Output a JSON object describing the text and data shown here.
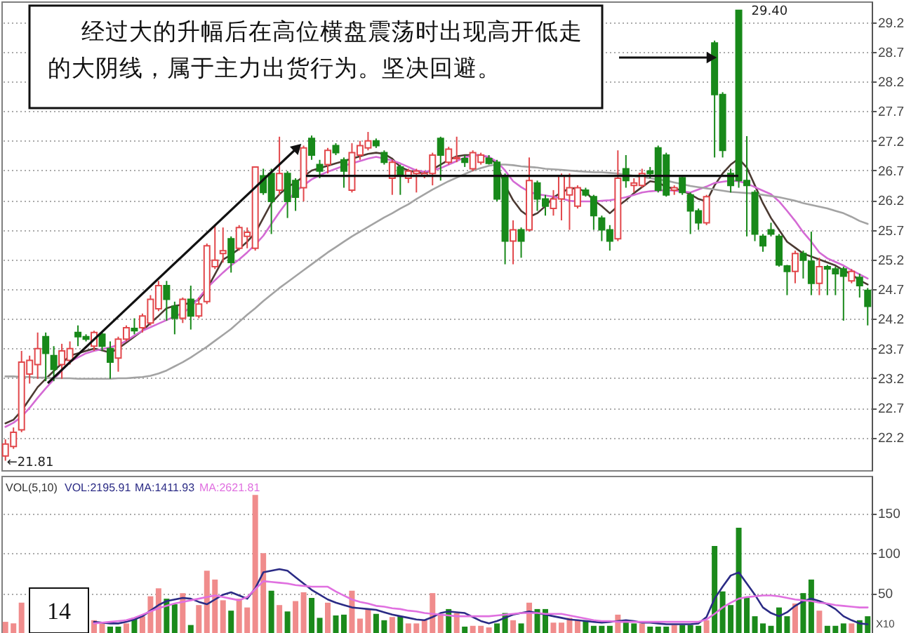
{
  "chart_data": [
    {
      "type": "candlestick",
      "categories": [
        null,
        null,
        null,
        null,
        null,
        null,
        null,
        null,
        null,
        null,
        null,
        null,
        null,
        null,
        null,
        null,
        null,
        null,
        null,
        null,
        null,
        null,
        null,
        null,
        null,
        null,
        null,
        null,
        null,
        null,
        null,
        null,
        null,
        null,
        null,
        null,
        null,
        null,
        null,
        null,
        null,
        null,
        null,
        null,
        null,
        null,
        null,
        null,
        null,
        null,
        null,
        null,
        null,
        null,
        null,
        null,
        null,
        null,
        null,
        null,
        null,
        null,
        null,
        null,
        null,
        null,
        null,
        null,
        null,
        null,
        null,
        null,
        null,
        null,
        null,
        null,
        null,
        null,
        null,
        null,
        null,
        null,
        null,
        null,
        null,
        null,
        null,
        null,
        null,
        null,
        null,
        null,
        null,
        null,
        null,
        null,
        null,
        null,
        null,
        null,
        null,
        null,
        null,
        null,
        null,
        null,
        null,
        null
      ],
      "ohlc": [
        [
          21.89,
          22.17,
          21.81,
          22.09
        ],
        [
          22.05,
          22.37,
          22.01,
          22.29
        ],
        [
          22.33,
          23.66,
          22.29,
          23.47
        ],
        [
          23.27,
          23.58,
          23.11,
          23.5
        ],
        [
          23.43,
          23.97,
          23.19,
          23.7
        ],
        [
          23.9,
          23.97,
          23.15,
          23.62
        ],
        [
          23.58,
          23.74,
          23.15,
          23.35
        ],
        [
          23.43,
          23.78,
          23.19,
          23.66
        ],
        [
          23.5,
          23.82,
          23.43,
          23.7
        ],
        [
          23.97,
          24.09,
          23.74,
          23.9
        ],
        [
          23.9,
          23.94,
          23.82,
          23.86
        ],
        [
          23.74,
          24.0,
          23.66,
          23.97
        ],
        [
          23.94,
          23.97,
          23.66,
          23.74
        ],
        [
          23.7,
          23.82,
          23.19,
          23.47
        ],
        [
          23.54,
          23.9,
          23.31,
          23.86
        ],
        [
          23.86,
          24.09,
          23.82,
          24.05
        ],
        [
          24.04,
          24.21,
          23.94,
          24.0
        ],
        [
          24.05,
          24.29,
          23.97,
          24.25
        ],
        [
          24.13,
          24.6,
          24.09,
          24.53
        ],
        [
          24.37,
          24.84,
          24.33,
          24.76
        ],
        [
          24.76,
          24.84,
          24.17,
          24.53
        ],
        [
          24.41,
          24.49,
          23.94,
          24.21
        ],
        [
          24.21,
          24.56,
          24.13,
          24.53
        ],
        [
          24.53,
          24.76,
          24.02,
          24.25
        ],
        [
          24.25,
          24.56,
          24.21,
          24.45
        ],
        [
          24.49,
          25.47,
          24.45,
          25.43
        ],
        [
          25.08,
          25.78,
          25.04,
          25.19
        ],
        [
          25.3,
          25.74,
          25.15,
          25.35
        ],
        [
          25.55,
          25.59,
          24.98,
          25.15
        ],
        [
          25.39,
          25.78,
          25.35,
          25.74
        ],
        [
          25.59,
          25.74,
          25.39,
          25.66
        ],
        [
          25.39,
          26.76,
          25.35,
          26.76
        ],
        [
          26.61,
          26.73,
          26.29,
          26.33
        ],
        [
          26.65,
          26.73,
          25.63,
          26.18
        ],
        [
          26.37,
          27.27,
          26.29,
          26.65
        ],
        [
          26.65,
          26.69,
          25.9,
          26.18
        ],
        [
          26.53,
          26.57,
          26.02,
          26.25
        ],
        [
          26.41,
          27.12,
          26.18,
          27.08
        ],
        [
          27.24,
          27.29,
          26.88,
          26.96
        ],
        [
          26.8,
          26.88,
          26.57,
          26.69
        ],
        [
          26.8,
          27.08,
          26.65,
          27.04
        ],
        [
          27.12,
          27.16,
          26.96,
          27.0
        ],
        [
          26.88,
          26.92,
          26.41,
          26.69
        ],
        [
          26.37,
          27.16,
          26.33,
          27.0
        ],
        [
          26.96,
          27.2,
          26.88,
          27.12
        ],
        [
          27.08,
          27.35,
          27.04,
          27.2
        ],
        [
          27.2,
          27.24,
          27.08,
          27.12
        ],
        [
          27.0,
          27.04,
          26.8,
          26.84
        ],
        [
          26.57,
          26.88,
          26.29,
          26.84
        ],
        [
          26.76,
          26.8,
          26.29,
          26.61
        ],
        [
          26.57,
          26.73,
          26.49,
          26.69
        ],
        [
          26.65,
          26.73,
          26.33,
          26.69
        ],
        [
          26.61,
          26.69,
          26.57,
          26.65
        ],
        [
          26.65,
          27.0,
          26.45,
          26.96
        ],
        [
          27.24,
          27.27,
          26.53,
          26.96
        ],
        [
          26.84,
          27.1,
          26.8,
          27.06
        ],
        [
          26.9,
          27.27,
          26.84,
          26.92
        ],
        [
          26.9,
          26.96,
          26.76,
          26.84
        ],
        [
          26.73,
          27.04,
          26.69,
          27.0
        ],
        [
          26.84,
          27.0,
          26.8,
          26.96
        ],
        [
          26.9,
          26.96,
          26.8,
          26.82
        ],
        [
          26.84,
          26.88,
          26.18,
          26.22
        ],
        [
          26.61,
          26.65,
          25.12,
          25.51
        ],
        [
          25.51,
          25.86,
          25.12,
          25.7
        ],
        [
          25.7,
          25.74,
          25.23,
          25.51
        ],
        [
          25.7,
          26.92,
          25.67,
          26.53
        ],
        [
          26.49,
          26.53,
          26.02,
          26.22
        ],
        [
          26.22,
          26.29,
          25.94,
          26.1
        ],
        [
          26.06,
          26.37,
          25.94,
          26.22
        ],
        [
          26.22,
          26.65,
          25.86,
          26.61
        ],
        [
          26.29,
          26.65,
          25.7,
          26.41
        ],
        [
          26.1,
          26.45,
          26.06,
          26.41
        ],
        [
          26.37,
          26.41,
          26.26,
          26.29
        ],
        [
          26.26,
          26.29,
          25.7,
          25.94
        ],
        [
          25.9,
          25.94,
          25.51,
          25.7
        ],
        [
          25.7,
          25.78,
          25.35,
          25.51
        ],
        [
          25.55,
          27.04,
          25.51,
          26.57
        ],
        [
          26.73,
          26.96,
          26.41,
          26.53
        ],
        [
          26.45,
          26.57,
          26.33,
          26.49
        ],
        [
          26.45,
          26.73,
          26.41,
          26.65
        ],
        [
          26.69,
          26.76,
          26.57,
          26.65
        ],
        [
          27.08,
          27.12,
          26.33,
          26.37
        ],
        [
          26.96,
          27.0,
          26.26,
          26.29
        ],
        [
          26.37,
          26.45,
          26.29,
          26.41
        ],
        [
          26.58,
          26.61,
          26.29,
          26.33
        ],
        [
          26.29,
          26.33,
          25.63,
          26.02
        ],
        [
          26.02,
          26.06,
          25.7,
          25.82
        ],
        [
          25.82,
          26.29,
          25.78,
          26.26
        ],
        [
          28.85,
          28.89,
          26.92,
          27.98
        ],
        [
          27.98,
          28.02,
          26.92,
          27.04
        ],
        [
          26.65,
          26.73,
          26.33,
          26.45
        ],
        [
          29.4,
          29.4,
          26.41,
          26.53
        ],
        [
          26.53,
          27.28,
          25.59,
          26.45
        ],
        [
          26.33,
          26.37,
          25.51,
          25.63
        ],
        [
          25.59,
          25.63,
          25.33,
          25.43
        ],
        [
          25.7,
          25.82,
          25.59,
          25.63
        ],
        [
          25.59,
          25.63,
          25.08,
          25.11
        ],
        [
          25.09,
          25.11,
          24.6,
          25.0
        ],
        [
          25.0,
          25.35,
          24.8,
          25.3
        ],
        [
          25.3,
          25.35,
          24.88,
          25.19
        ],
        [
          25.17,
          25.67,
          24.6,
          24.8
        ],
        [
          24.8,
          25.23,
          24.6,
          25.08
        ],
        [
          25.08,
          25.11,
          24.6,
          25.04
        ],
        [
          25.04,
          25.08,
          24.6,
          24.96
        ],
        [
          25.04,
          25.08,
          24.17,
          24.92
        ],
        [
          24.84,
          25.04,
          24.8,
          25.0
        ],
        [
          24.9,
          24.96,
          24.56,
          24.76
        ],
        [
          24.68,
          24.72,
          24.09,
          24.41
        ]
      ],
      "colors": [
        "#e2474b",
        "#e2474b",
        "#e2474b",
        "#e2474b",
        "#e2474b",
        "#18891a",
        "#18891a",
        "#e2474b",
        "#e2474b",
        "#18891a",
        "#18891a",
        "#e2474b",
        "#18891a",
        "#18891a",
        "#e2474b",
        "#e2474b",
        "#18891a",
        "#e2474b",
        "#e2474b",
        "#e2474b",
        "#18891a",
        "#18891a",
        "#e2474b",
        "#18891a",
        "#e2474b",
        "#e2474b",
        "#e2474b",
        "#e2474b",
        "#18891a",
        "#e2474b",
        "#e2474b",
        "#e2474b",
        "#18891a",
        "#18891a",
        "#e2474b",
        "#18891a",
        "#18891a",
        "#e2474b",
        "#18891a",
        "#18891a",
        "#e2474b",
        "#18891a",
        "#18891a",
        "#e2474b",
        "#e2474b",
        "#e2474b",
        "#18891a",
        "#18891a",
        "#e2474b",
        "#18891a",
        "#e2474b",
        "#e2474b",
        "#e2474b",
        "#e2474b",
        "#18891a",
        "#e2474b",
        "#e2474b",
        "#18891a",
        "#e2474b",
        "#e2474b",
        "#18891a",
        "#18891a",
        "#18891a",
        "#e2474b",
        "#18891a",
        "#e2474b",
        "#18891a",
        "#18891a",
        "#e2474b",
        "#e2474b",
        "#e2474b",
        "#e2474b",
        "#18891a",
        "#18891a",
        "#18891a",
        "#18891a",
        "#e2474b",
        "#18891a",
        "#e2474b",
        "#e2474b",
        "#18891a",
        "#18891a",
        "#18891a",
        "#e2474b",
        "#18891a",
        "#18891a",
        "#18891a",
        "#e2474b",
        "#18891a",
        "#18891a",
        "#18891a",
        "#18891a",
        "#18891a",
        "#18891a",
        "#18891a",
        "#18891a",
        "#18891a",
        "#18891a",
        "#e2474b",
        "#18891a",
        "#18891a",
        "#e2474b",
        "#18891a",
        "#18891a",
        "#18891a",
        "#e2474b",
        "#18891a",
        "#18891a"
      ],
      "series": [
        {
          "type": "line",
          "color": "#4b3a32",
          "values": [
            22.44,
            22.5,
            22.65,
            22.85,
            23.05,
            23.19,
            23.32,
            23.45,
            23.58,
            23.62,
            23.66,
            23.7,
            23.67,
            23.63,
            23.7,
            23.8,
            23.9,
            24.0,
            24.13,
            24.25,
            24.38,
            24.42,
            24.44,
            24.47,
            24.52,
            24.7,
            24.95,
            25.2,
            25.28,
            25.38,
            25.5,
            25.65,
            25.9,
            26.15,
            26.3,
            26.42,
            26.5,
            26.6,
            26.7,
            26.74,
            26.78,
            26.82,
            26.86,
            26.9,
            26.94,
            26.98,
            27.0,
            26.98,
            26.9,
            26.76,
            26.7,
            26.67,
            26.65,
            26.72,
            26.8,
            26.88,
            26.94,
            26.96,
            26.96,
            26.96,
            26.92,
            26.8,
            26.45,
            26.2,
            26.02,
            25.92,
            25.98,
            26.1,
            26.25,
            26.33,
            26.4,
            26.4,
            26.34,
            26.2,
            26.1,
            25.98,
            26.1,
            26.2,
            26.32,
            26.42,
            26.52,
            26.5,
            26.42,
            26.4,
            26.36,
            26.3,
            26.22,
            26.18,
            26.45,
            26.65,
            26.8,
            26.9,
            26.75,
            26.45,
            26.15,
            25.9,
            25.7,
            25.5,
            25.4,
            25.3,
            25.25,
            25.2,
            25.15,
            25.1,
            25.02,
            24.95,
            24.85,
            24.78
          ]
        },
        {
          "type": "line",
          "color": "#d46ad4",
          "values": [
            22.38,
            22.45,
            22.55,
            22.7,
            22.87,
            23.03,
            23.18,
            23.33,
            23.48,
            23.55,
            23.62,
            23.66,
            23.69,
            23.72,
            23.76,
            23.83,
            23.92,
            24.0,
            24.06,
            24.12,
            24.18,
            24.24,
            24.3,
            24.4,
            24.55,
            24.72,
            24.85,
            24.98,
            25.1,
            25.2,
            25.32,
            25.45,
            25.6,
            25.8,
            26.0,
            26.18,
            26.35,
            26.45,
            26.55,
            26.62,
            26.68,
            26.73,
            26.78,
            26.82,
            26.86,
            26.9,
            26.93,
            26.9,
            26.87,
            26.82,
            26.76,
            26.7,
            26.68,
            26.7,
            26.74,
            26.8,
            26.86,
            26.92,
            26.96,
            26.96,
            26.93,
            26.85,
            26.7,
            26.52,
            26.42,
            26.34,
            26.3,
            26.28,
            26.26,
            26.23,
            26.19,
            26.18,
            26.18,
            26.18,
            26.19,
            26.2,
            26.22,
            26.25,
            26.29,
            26.33,
            26.35,
            26.36,
            26.37,
            26.36,
            26.35,
            26.33,
            26.38,
            26.43,
            26.49,
            26.51,
            26.53,
            26.52,
            26.48,
            26.42,
            26.36,
            26.3,
            26.18,
            26.02,
            25.85,
            25.66,
            25.5,
            25.32,
            25.22,
            25.16,
            25.1,
            25.02,
            24.95,
            24.88
          ]
        },
        {
          "type": "line",
          "color": "#a3a3a3",
          "values": [
            23.23,
            23.23,
            23.22,
            23.22,
            23.21,
            23.21,
            23.2,
            23.2,
            23.2,
            23.19,
            23.19,
            23.19,
            23.19,
            23.19,
            23.2,
            23.2,
            23.21,
            23.22,
            23.24,
            23.28,
            23.33,
            23.4,
            23.47,
            23.55,
            23.64,
            23.73,
            23.83,
            23.93,
            24.03,
            24.15,
            24.27,
            24.38,
            24.5,
            24.61,
            24.72,
            24.82,
            24.92,
            25.02,
            25.12,
            25.22,
            25.32,
            25.41,
            25.5,
            25.59,
            25.67,
            25.75,
            25.83,
            25.91,
            25.98,
            26.06,
            26.13,
            26.22,
            26.3,
            26.38,
            26.45,
            26.52,
            26.58,
            26.64,
            26.7,
            26.74,
            26.78,
            26.8,
            26.8,
            26.79,
            26.77,
            26.76,
            26.75,
            26.73,
            26.72,
            26.71,
            26.7,
            26.69,
            26.68,
            26.67,
            26.67,
            26.66,
            26.65,
            26.63,
            26.61,
            26.59,
            26.57,
            26.55,
            26.53,
            26.5,
            26.47,
            26.44,
            26.42,
            26.4,
            26.38,
            26.36,
            26.34,
            26.33,
            26.32,
            26.31,
            26.29,
            26.27,
            26.25,
            26.22,
            26.19,
            26.15,
            26.12,
            26.09,
            26.06,
            26.02,
            25.98,
            25.92,
            25.85,
            25.8
          ]
        }
      ],
      "ylim": [
        21.65,
        29.55
      ],
      "yticks": [
        22.2,
        22.7,
        23.2,
        23.7,
        24.2,
        24.7,
        25.2,
        25.7,
        26.2,
        26.7,
        27.2,
        27.7,
        28.2,
        28.7,
        29.2
      ],
      "grid": "y",
      "tick_labels": "y",
      "ref_lines": [
        {
          "axis": "y",
          "value": 26.61,
          "color": "#111111"
        }
      ],
      "annotations": [
        "经过大的升幅后在高位横盘震荡时出现高开低走的大阴线，属于主力出货行为。坚决回避。",
        "29.40",
        "←21.81"
      ]
    },
    {
      "type": "bar",
      "categories": [
        null,
        null,
        null,
        null,
        null,
        null,
        null,
        null,
        null,
        null,
        null,
        null,
        null,
        null,
        null,
        null,
        null,
        null,
        null,
        null,
        null,
        null,
        null,
        null,
        null,
        null,
        null,
        null,
        null,
        null,
        null,
        null,
        null,
        null,
        null,
        null,
        null,
        null,
        null,
        null,
        null,
        null,
        null,
        null,
        null,
        null,
        null,
        null,
        null,
        null,
        null,
        null,
        null,
        null,
        null,
        null,
        null,
        null,
        null,
        null,
        null,
        null,
        null,
        null,
        null,
        null,
        null,
        null,
        null,
        null,
        null,
        null,
        null,
        null,
        null,
        null,
        null,
        null,
        null,
        null,
        null,
        null,
        null,
        null,
        null,
        null,
        null,
        null,
        null,
        null,
        null,
        null,
        null,
        null,
        null,
        null,
        null,
        null,
        null,
        null,
        null,
        null,
        null,
        null,
        null,
        null,
        null,
        null
      ],
      "values": [
        14,
        12,
        38,
        null,
        null,
        null,
        null,
        null,
        null,
        null,
        null,
        16,
        12,
        8,
        8,
        12,
        19,
        21,
        46,
        56,
        43,
        36,
        50,
        10,
        35,
        78,
        67,
        41,
        28,
        43,
        32,
        173,
        100,
        53,
        35,
        27,
        40,
        51,
        44,
        19,
        38,
        22,
        23,
        53,
        18,
        30,
        24,
        16,
        20,
        21,
        12,
        12,
        16,
        50,
        24,
        30,
        25,
        8,
        9,
        9,
        7,
        12,
        25,
        16,
        12,
        38,
        30,
        30,
        13,
        13,
        19,
        16,
        16,
        9,
        9,
        9,
        23,
        16,
        12,
        12,
        8,
        8,
        8,
        10,
        10,
        10,
        9,
        16,
        109,
        52,
        35,
        132,
        45,
        21,
        12,
        9,
        32,
        21,
        37,
        50,
        67,
        28,
        9,
        9,
        12,
        12,
        16,
        21
      ],
      "colors": [
        "#f08c8c",
        "#f08c8c",
        "#f08c8c",
        null,
        null,
        null,
        null,
        null,
        null,
        null,
        null,
        "#f08c8c",
        "#f08c8c",
        "#1b8a1b",
        "#1b8a1b",
        "#f08c8c",
        "#1b8a1b",
        "#f08c8c",
        "#f08c8c",
        "#f08c8c",
        "#1b8a1b",
        "#1b8a1b",
        "#f08c8c",
        "#1b8a1b",
        "#f08c8c",
        "#f08c8c",
        "#f08c8c",
        "#f08c8c",
        "#1b8a1b",
        "#f08c8c",
        "#f08c8c",
        "#f08c8c",
        "#f08c8c",
        "#1b8a1b",
        "#f08c8c",
        "#1b8a1b",
        "#f08c8c",
        "#f08c8c",
        "#1b8a1b",
        "#1b8a1b",
        "#f08c8c",
        "#1b8a1b",
        "#1b8a1b",
        "#f08c8c",
        "#f08c8c",
        "#f08c8c",
        "#1b8a1b",
        "#1b8a1b",
        "#f08c8c",
        "#1b8a1b",
        "#f08c8c",
        "#f08c8c",
        "#f08c8c",
        "#f08c8c",
        "#f08c8c",
        "#1b8a1b",
        "#f08c8c",
        "#1b8a1b",
        "#f08c8c",
        "#f08c8c",
        "#f08c8c",
        "#1b8a1b",
        "#1b8a1b",
        "#f08c8c",
        "#1b8a1b",
        "#f08c8c",
        "#1b8a1b",
        "#1b8a1b",
        "#f08c8c",
        "#f08c8c",
        "#f08c8c",
        "#f08c8c",
        "#1b8a1b",
        "#1b8a1b",
        "#1b8a1b",
        "#1b8a1b",
        "#f08c8c",
        "#1b8a1b",
        "#1b8a1b",
        "#f08c8c",
        "#1b8a1b",
        "#1b8a1b",
        "#1b8a1b",
        "#f08c8c",
        "#1b8a1b",
        "#1b8a1b",
        "#1b8a1b",
        "#f08c8c",
        "#1b8a1b",
        "#1b8a1b",
        "#1b8a1b",
        "#1b8a1b",
        "#1b8a1b",
        "#1b8a1b",
        "#1b8a1b",
        "#1b8a1b",
        "#1b8a1b",
        "#1b8a1b",
        "#f08c8c",
        "#1b8a1b",
        "#1b8a1b",
        "#f08c8c",
        "#1b8a1b",
        "#1b8a1b",
        "#1b8a1b",
        "#f08c8c",
        "#1b8a1b",
        "#1b8a1b"
      ],
      "series": [
        {
          "type": "line",
          "name": "MA:1411.93",
          "color": "#2b2b85",
          "values": [
            null,
            null,
            null,
            null,
            null,
            null,
            null,
            null,
            null,
            null,
            null,
            14,
            13,
            12,
            12,
            14,
            17,
            21,
            28,
            35,
            40,
            42,
            44,
            43,
            39,
            36,
            42,
            48,
            51,
            47,
            43,
            56,
            76,
            78,
            80,
            78,
            70,
            62,
            54,
            48,
            42,
            38,
            35,
            32,
            31,
            30,
            29,
            26,
            23,
            21,
            19,
            17,
            16,
            20,
            25,
            27,
            26,
            25,
            20,
            15,
            12,
            15,
            19,
            23,
            25,
            27,
            25,
            23,
            21,
            19,
            17,
            16,
            15,
            14,
            13,
            14,
            15,
            16,
            15,
            13,
            13,
            12,
            11,
            11,
            11,
            11,
            12,
            20,
            43,
            58,
            72,
            76,
            62,
            48,
            32,
            25,
            21,
            26,
            34,
            40,
            43,
            40,
            36,
            30,
            21,
            16,
            12,
            11
          ]
        },
        {
          "type": "line",
          "name": "MA:2621.81",
          "color": "#e070e0",
          "values": [
            null,
            null,
            null,
            null,
            null,
            null,
            null,
            null,
            null,
            null,
            null,
            12,
            13,
            14,
            15,
            16,
            19,
            23,
            27,
            31,
            34,
            37,
            39,
            41,
            43,
            45,
            47,
            45,
            43,
            41,
            45,
            55,
            65,
            64,
            63,
            62,
            60,
            59,
            58,
            58,
            58,
            52,
            47,
            42,
            39,
            37,
            34,
            33,
            31,
            30,
            28,
            27,
            25,
            24,
            23,
            22,
            21,
            21,
            21,
            21,
            21,
            22,
            23,
            24,
            25,
            25,
            25,
            24,
            24,
            24,
            22,
            20,
            18,
            16,
            15,
            15,
            14,
            14,
            14,
            14,
            14,
            14,
            14,
            14,
            14,
            14,
            14,
            17,
            24,
            32,
            38,
            43,
            45,
            46,
            47,
            47,
            46,
            44,
            42,
            41,
            40,
            38,
            37,
            35,
            34,
            33,
            32,
            32
          ]
        }
      ],
      "ylim": [
        0,
        197
      ],
      "yticks": [
        50,
        100,
        150
      ],
      "grid": "y",
      "tick_labels": "y",
      "legend": "top left",
      "annotations": [
        "VOL(5,10)",
        "VOL:2195.91",
        "X10",
        "14"
      ]
    }
  ]
}
